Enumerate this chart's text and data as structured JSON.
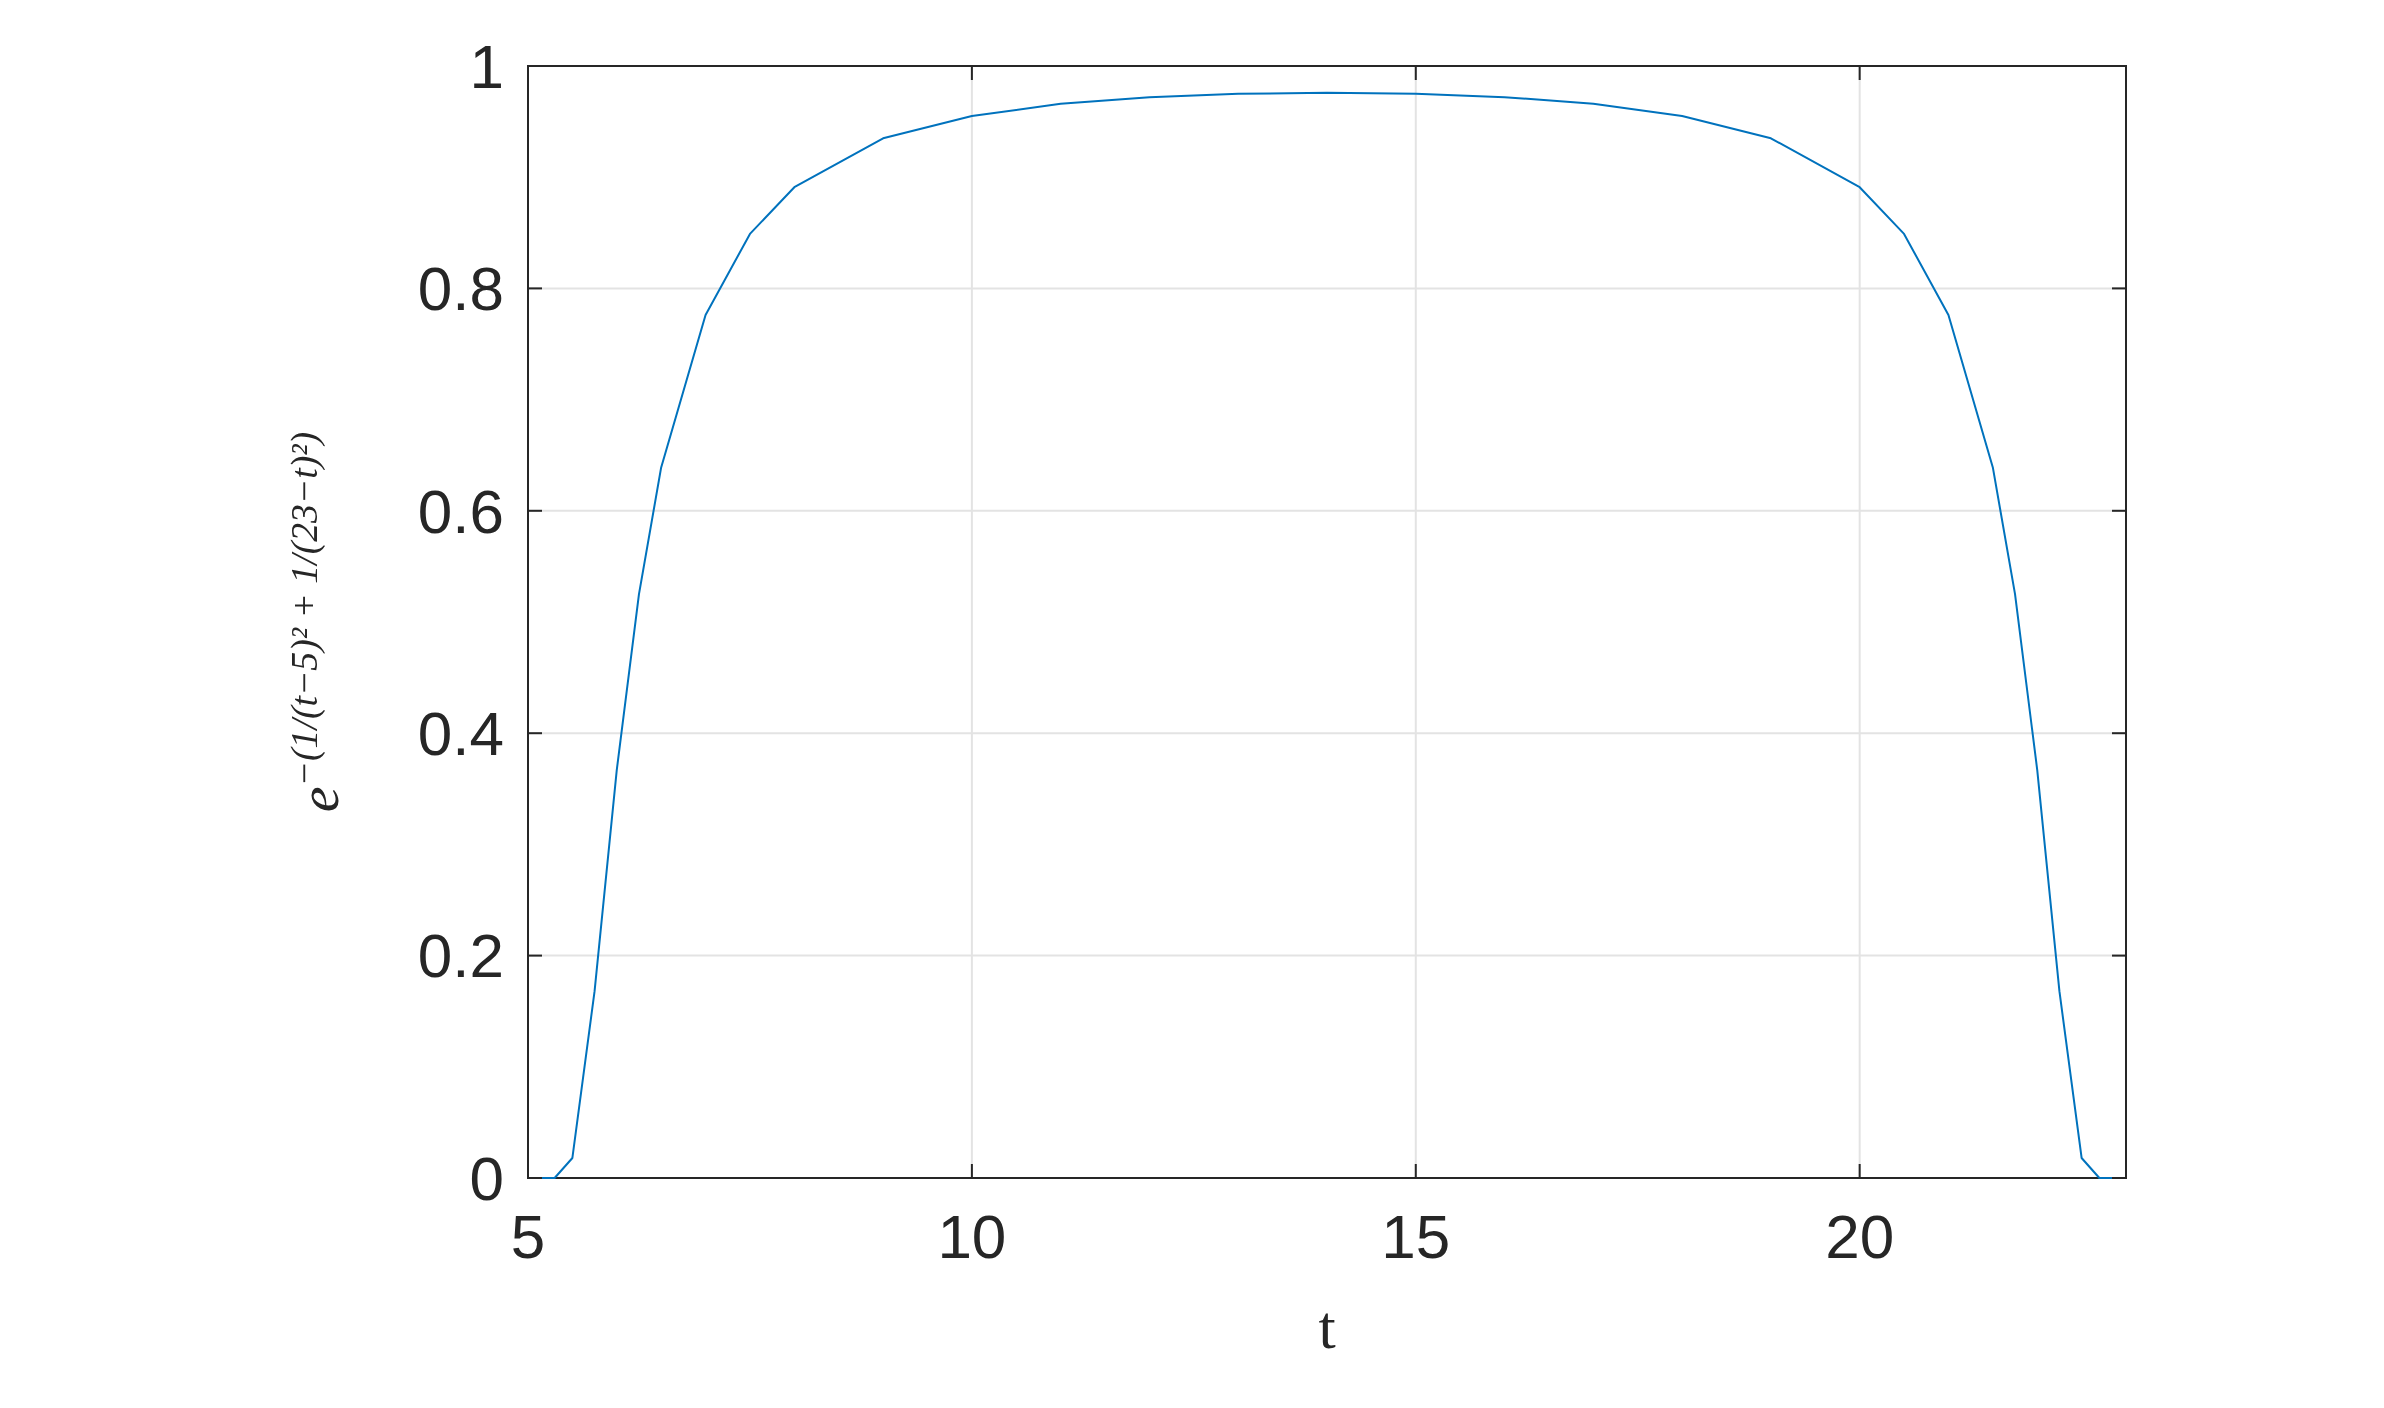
{
  "chart_data": {
    "type": "line",
    "xlabel": "t",
    "ylabel": "e$^{−(1/(t−5)² + 1/(23−t)²)}$",
    "x": [
      5,
      5.3,
      5.5,
      5.75,
      6,
      6.25,
      6.5,
      7,
      7.5,
      8,
      9,
      10,
      11,
      12,
      13,
      14,
      15,
      16,
      17,
      18,
      19,
      20,
      20.5,
      21,
      21.5,
      21.75,
      22,
      22.25,
      22.5,
      22.7,
      23
    ],
    "series": [
      {
        "color": "#0072bd",
        "values": [
          0,
          0,
          0.018,
          0.168,
          0.367,
          0.525,
          0.639,
          0.776,
          0.849,
          0.891,
          0.935,
          0.955,
          0.966,
          0.972,
          0.975,
          0.976,
          0.975,
          0.972,
          0.966,
          0.955,
          0.935,
          0.891,
          0.849,
          0.776,
          0.639,
          0.525,
          0.367,
          0.168,
          0.018,
          0,
          0
        ]
      }
    ],
    "xlim": [
      5,
      23
    ],
    "xticks": [
      5,
      10,
      15,
      20
    ],
    "ylim": [
      0,
      1
    ],
    "yticks": [
      0,
      0.2,
      0.4,
      0.6,
      0.8,
      1
    ],
    "grid": true,
    "line_style": "solid",
    "marker": "none"
  }
}
